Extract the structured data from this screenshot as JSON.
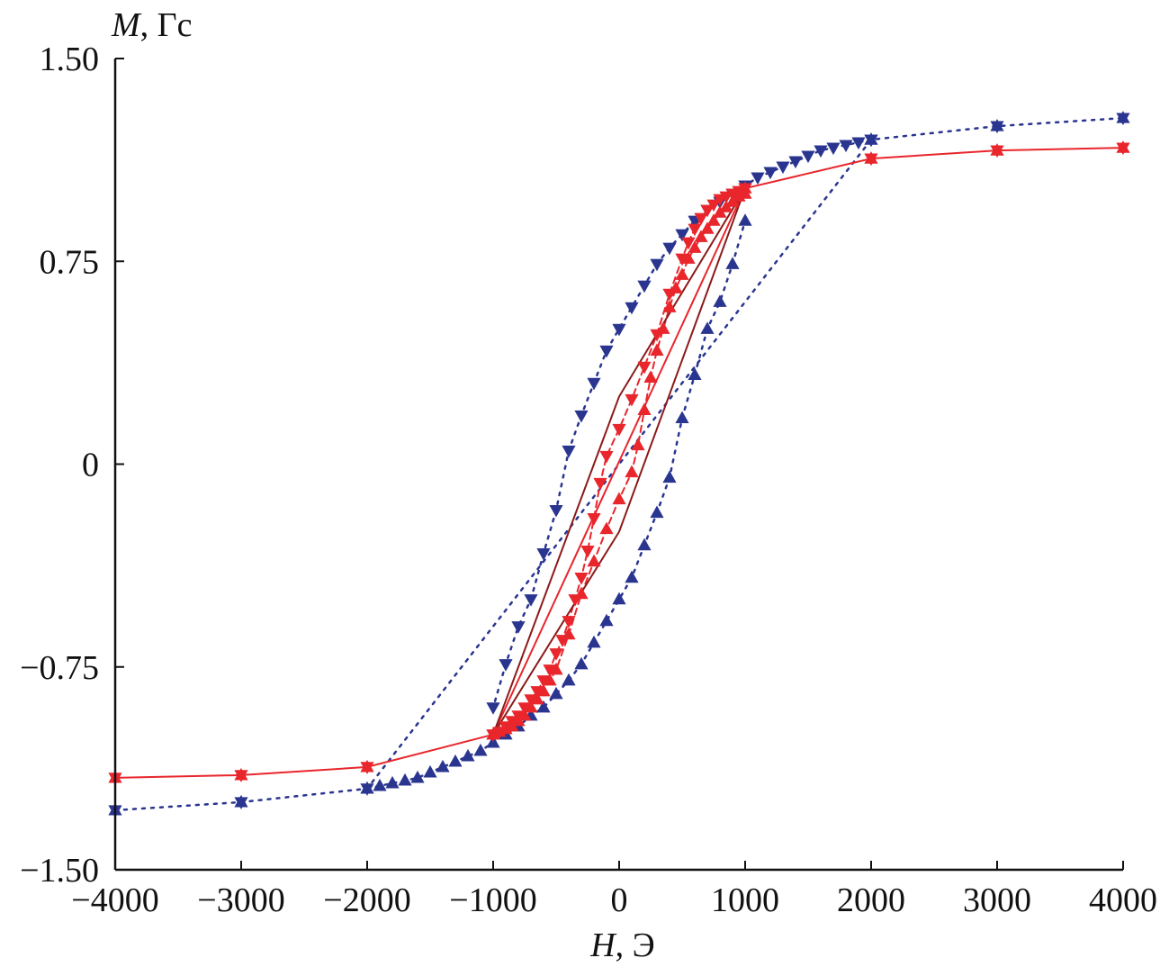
{
  "chart_data": {
    "type": "scatter",
    "title": "",
    "xlabel": {
      "symbol": "H",
      "unit": ", Э"
    },
    "ylabel": {
      "symbol": "M",
      "unit": ", Гс"
    },
    "xlim": [
      -4000,
      4000
    ],
    "ylim": [
      -1.5,
      1.5
    ],
    "x_ticks": [
      -4000,
      -3000,
      -2000,
      -1000,
      0,
      1000,
      2000,
      3000,
      4000
    ],
    "x_tick_labels": [
      "−4000",
      "−3000",
      "−2000",
      "−1000",
      "0",
      "1000",
      "2000",
      "3000",
      "4000"
    ],
    "y_ticks": [
      1.5,
      0.75,
      0,
      -0.75,
      -1.5
    ],
    "y_tick_labels": [
      "1.50",
      "0.75",
      "0",
      "−0.75",
      "−1.50"
    ],
    "grid": false,
    "legend": "none",
    "colors": {
      "blue": "#2a3590",
      "red": "#e8262c",
      "darkred": "#8b1a1a",
      "navy": "#1e2a6e",
      "axis": "#111111"
    },
    "series": [
      {
        "color": "blue",
        "marker": "star",
        "line": "dotted",
        "x": [
          -4000,
          -3000,
          -2000,
          2000,
          3000,
          4000
        ],
        "y": [
          -1.28,
          -1.25,
          -1.2,
          1.2,
          1.25,
          1.28
        ]
      },
      {
        "color": "blue",
        "marker": "triangle-down",
        "line": "dotted",
        "x": [
          2000,
          1900,
          1800,
          1700,
          1600,
          1500,
          1400,
          1300,
          1200,
          1100,
          1000,
          900,
          800,
          700,
          600,
          500,
          400,
          300,
          200,
          100,
          0,
          -100,
          -200,
          -300,
          -400,
          -500,
          -600,
          -700,
          -800,
          -900,
          -1000
        ],
        "y": [
          1.2,
          1.19,
          1.18,
          1.17,
          1.16,
          1.14,
          1.12,
          1.1,
          1.08,
          1.06,
          1.03,
          1.0,
          0.97,
          0.94,
          0.9,
          0.85,
          0.8,
          0.74,
          0.66,
          0.58,
          0.5,
          0.42,
          0.3,
          0.18,
          0.05,
          -0.17,
          -0.33,
          -0.5,
          -0.6,
          -0.74,
          -0.9
        ]
      },
      {
        "color": "blue",
        "marker": "triangle-up",
        "line": "dotted",
        "x": [
          -2000,
          -1900,
          -1800,
          -1700,
          -1600,
          -1500,
          -1400,
          -1300,
          -1200,
          -1100,
          -1000,
          -900,
          -800,
          -700,
          -600,
          -500,
          -400,
          -300,
          -200,
          -100,
          0,
          100,
          200,
          300,
          400,
          500,
          600,
          700,
          800,
          900,
          1000
        ],
        "y": [
          -1.2,
          -1.19,
          -1.18,
          -1.17,
          -1.16,
          -1.14,
          -1.12,
          -1.1,
          -1.08,
          -1.06,
          -1.03,
          -1.0,
          -0.97,
          -0.93,
          -0.9,
          -0.85,
          -0.8,
          -0.74,
          -0.66,
          -0.58,
          -0.5,
          -0.42,
          -0.3,
          -0.18,
          -0.05,
          0.17,
          0.33,
          0.5,
          0.6,
          0.74,
          0.9
        ]
      },
      {
        "color": "red",
        "marker": "star",
        "line": "solid",
        "x": [
          -4000,
          -3000,
          -2000,
          -1000,
          1000,
          2000,
          3000,
          4000
        ],
        "y": [
          -1.16,
          -1.15,
          -1.12,
          -1.0,
          1.02,
          1.13,
          1.16,
          1.17
        ]
      },
      {
        "color": "red",
        "marker": "triangle-down",
        "line": "dashed",
        "x": [
          1000,
          950,
          900,
          850,
          800,
          750,
          700,
          650,
          600,
          550,
          500,
          400,
          300,
          200,
          100,
          0,
          -100,
          -150,
          -200,
          -250,
          -300,
          -350,
          -400,
          -450,
          -500,
          -550,
          -600,
          -650,
          -700,
          -750,
          -800,
          -850,
          -900,
          -950,
          -1000
        ],
        "y": [
          1.02,
          1.01,
          1.0,
          0.99,
          0.98,
          0.96,
          0.94,
          0.91,
          0.87,
          0.82,
          0.76,
          0.63,
          0.48,
          0.36,
          0.24,
          0.13,
          0.03,
          -0.07,
          -0.2,
          -0.32,
          -0.42,
          -0.5,
          -0.58,
          -0.65,
          -0.7,
          -0.76,
          -0.8,
          -0.84,
          -0.87,
          -0.9,
          -0.93,
          -0.95,
          -0.97,
          -0.99,
          -1.0
        ]
      },
      {
        "color": "red",
        "marker": "triangle-up",
        "line": "dashed",
        "x": [
          -1000,
          -950,
          -900,
          -850,
          -800,
          -750,
          -700,
          -650,
          -600,
          -550,
          -500,
          -400,
          -300,
          -200,
          -100,
          0,
          100,
          150,
          200,
          250,
          300,
          350,
          400,
          450,
          500,
          550,
          600,
          650,
          700,
          750,
          800,
          850,
          900,
          950,
          1000
        ],
        "y": [
          -1.0,
          -0.99,
          -0.98,
          -0.97,
          -0.95,
          -0.93,
          -0.9,
          -0.87,
          -0.84,
          -0.8,
          -0.76,
          -0.63,
          -0.48,
          -0.36,
          -0.24,
          -0.13,
          -0.03,
          0.07,
          0.2,
          0.32,
          0.42,
          0.5,
          0.58,
          0.65,
          0.7,
          0.76,
          0.8,
          0.84,
          0.87,
          0.9,
          0.93,
          0.95,
          0.97,
          0.99,
          1.0
        ]
      },
      {
        "color": "darkred",
        "marker": "none",
        "line": "solid",
        "x": [
          -1000,
          0,
          1000
        ],
        "y": [
          -1.0,
          -0.25,
          1.02
        ]
      },
      {
        "color": "darkred",
        "marker": "none",
        "line": "solid",
        "x": [
          -1000,
          0,
          1000
        ],
        "y": [
          -1.0,
          0.25,
          1.02
        ]
      }
    ]
  }
}
